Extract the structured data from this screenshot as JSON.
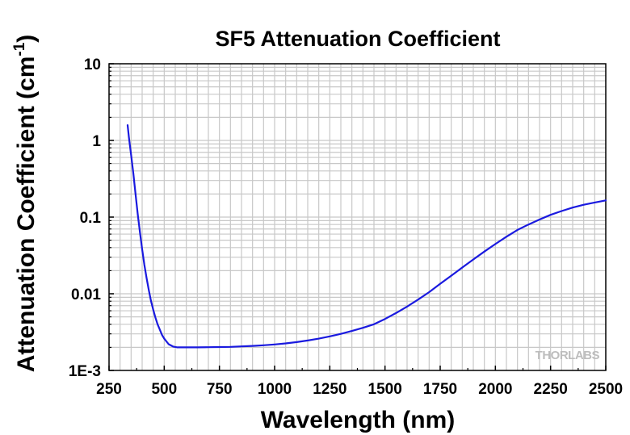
{
  "chart_data": {
    "type": "line",
    "title": "SF5 Attenuation Coefficient",
    "xlabel": "Wavelength (nm)",
    "ylabel": "Attenuation Coefficient (cm",
    "ylabel_superscript": "-1",
    "ylabel_suffix": ")",
    "xlim": [
      250,
      2500
    ],
    "ylim": [
      0.001,
      10
    ],
    "yscale": "log",
    "grid": true,
    "x_ticks": [
      250,
      500,
      750,
      1000,
      1250,
      1500,
      1750,
      2000,
      2250,
      2500
    ],
    "x_tick_labels": [
      "250",
      "500",
      "750",
      "1000",
      "1250",
      "1500",
      "1750",
      "2000",
      "2250",
      "2500"
    ],
    "y_ticks": [
      0.001,
      0.01,
      0.1,
      1,
      10
    ],
    "y_tick_labels": [
      "1E-3",
      "0.01",
      "0.1",
      "1",
      "10"
    ],
    "series": [
      {
        "color": "#1a1adf",
        "x": [
          334,
          340,
          350,
          360,
          370,
          380,
          390,
          400,
          410,
          420,
          430,
          440,
          450,
          460,
          470,
          480,
          490,
          500,
          520,
          540,
          560,
          580,
          600,
          650,
          700,
          750,
          800,
          850,
          900,
          950,
          1000,
          1050,
          1100,
          1150,
          1200,
          1250,
          1300,
          1350,
          1400,
          1450,
          1500,
          1550,
          1600,
          1650,
          1700,
          1750,
          1800,
          1850,
          1900,
          1950,
          2000,
          2050,
          2100,
          2150,
          2200,
          2250,
          2300,
          2350,
          2400,
          2450,
          2500
        ],
        "y": [
          1.58,
          1.1,
          0.65,
          0.37,
          0.2,
          0.11,
          0.063,
          0.038,
          0.024,
          0.016,
          0.0112,
          0.0081,
          0.0062,
          0.0049,
          0.004,
          0.0034,
          0.0029,
          0.0026,
          0.0022,
          0.00205,
          0.002,
          0.002,
          0.002,
          0.002,
          0.00201,
          0.00202,
          0.00203,
          0.00206,
          0.00209,
          0.00213,
          0.00218,
          0.00225,
          0.00234,
          0.00246,
          0.0026,
          0.00278,
          0.003,
          0.00327,
          0.0036,
          0.004,
          0.0047,
          0.0056,
          0.0068,
          0.0084,
          0.0105,
          0.0135,
          0.0172,
          0.022,
          0.028,
          0.0355,
          0.0445,
          0.0555,
          0.068,
          0.08,
          0.093,
          0.107,
          0.12,
          0.133,
          0.145,
          0.155,
          0.165
        ]
      }
    ]
  },
  "watermark": "THORLABS"
}
